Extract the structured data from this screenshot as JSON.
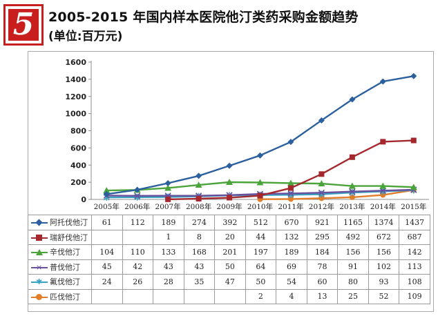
{
  "header": {
    "badge_number": "5",
    "title": "2005-2015 年国内样本医院他汀类药采购金额趋势",
    "subtitle": "(单位:百万元)"
  },
  "colors": {
    "badge": "#c81e1e",
    "series": [
      "#2b5f9e",
      "#a4282d",
      "#4aa43a",
      "#6a4f9c",
      "#36a2c0",
      "#e27d2a"
    ]
  },
  "chart_data": {
    "type": "line",
    "title": "2005-2015 年国内样本医院他汀类药采购金额趋势",
    "subtitle": "(单位:百万元)",
    "categories": [
      "2005年",
      "2006年",
      "2007年",
      "2008年",
      "2009年",
      "2010年",
      "2011年",
      "2012年",
      "2013年",
      "2014年",
      "2015年"
    ],
    "yticks": [
      "0",
      "200",
      "400",
      "600",
      "800",
      "1000",
      "1200",
      "1400",
      "1600"
    ],
    "ylim": [
      0,
      1600
    ],
    "grid": false,
    "legend": "data table below chart",
    "series": [
      {
        "name": "阿托伐他汀",
        "marker": "diamond",
        "values": [
          61,
          112,
          189,
          274,
          392,
          512,
          670,
          921,
          1165,
          1374,
          1437
        ]
      },
      {
        "name": "瑞舒伐他汀",
        "marker": "square",
        "values": [
          null,
          null,
          1,
          8,
          20,
          44,
          132,
          295,
          492,
          672,
          687
        ]
      },
      {
        "name": "辛伐他汀",
        "marker": "triangle",
        "values": [
          104,
          110,
          133,
          168,
          201,
          197,
          189,
          184,
          156,
          156,
          142
        ]
      },
      {
        "name": "普伐他汀",
        "marker": "x",
        "values": [
          45,
          42,
          43,
          43,
          50,
          64,
          69,
          78,
          91,
          102,
          113
        ]
      },
      {
        "name": "氟伐他汀",
        "marker": "star",
        "values": [
          24,
          26,
          28,
          35,
          47,
          50,
          54,
          60,
          80,
          93,
          108
        ]
      },
      {
        "name": "匹伐他汀",
        "marker": "circle",
        "values": [
          null,
          null,
          null,
          null,
          null,
          2,
          4,
          13,
          25,
          52,
          109
        ]
      }
    ]
  }
}
